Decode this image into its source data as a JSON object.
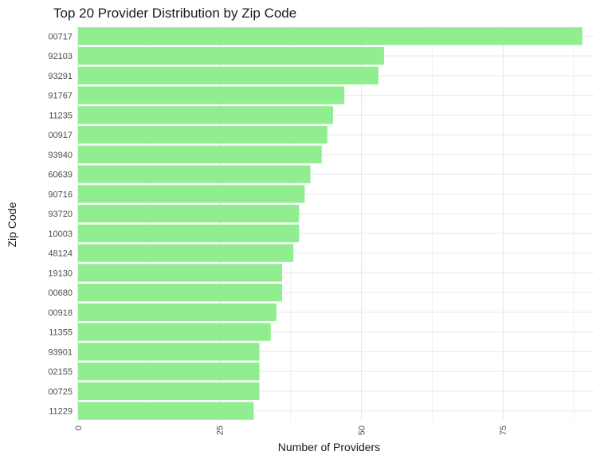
{
  "chart_data": {
    "type": "bar",
    "orientation": "horizontal",
    "title": "Top 20 Provider Distribution by Zip Code",
    "xlabel": "Number of Providers",
    "ylabel": "Zip Code",
    "categories": [
      "00717",
      "92103",
      "93291",
      "91767",
      "11235",
      "00917",
      "93940",
      "60639",
      "90716",
      "93720",
      "10003",
      "48124",
      "19130",
      "00680",
      "00918",
      "11355",
      "93901",
      "02155",
      "00725",
      "11229"
    ],
    "values": [
      89,
      54,
      53,
      47,
      45,
      44,
      43,
      41,
      40,
      39,
      39,
      38,
      36,
      36,
      35,
      34,
      32,
      32,
      32,
      31
    ],
    "xlim": [
      0,
      91
    ],
    "x_ticks": [
      0,
      25,
      50,
      75
    ],
    "x_tick_labels": [
      "0",
      "25",
      "50",
      "75"
    ],
    "x_minor_ticks": [
      12.5,
      37.5,
      62.5,
      87.5
    ],
    "grid": true,
    "bar_color": "#90ee90"
  }
}
